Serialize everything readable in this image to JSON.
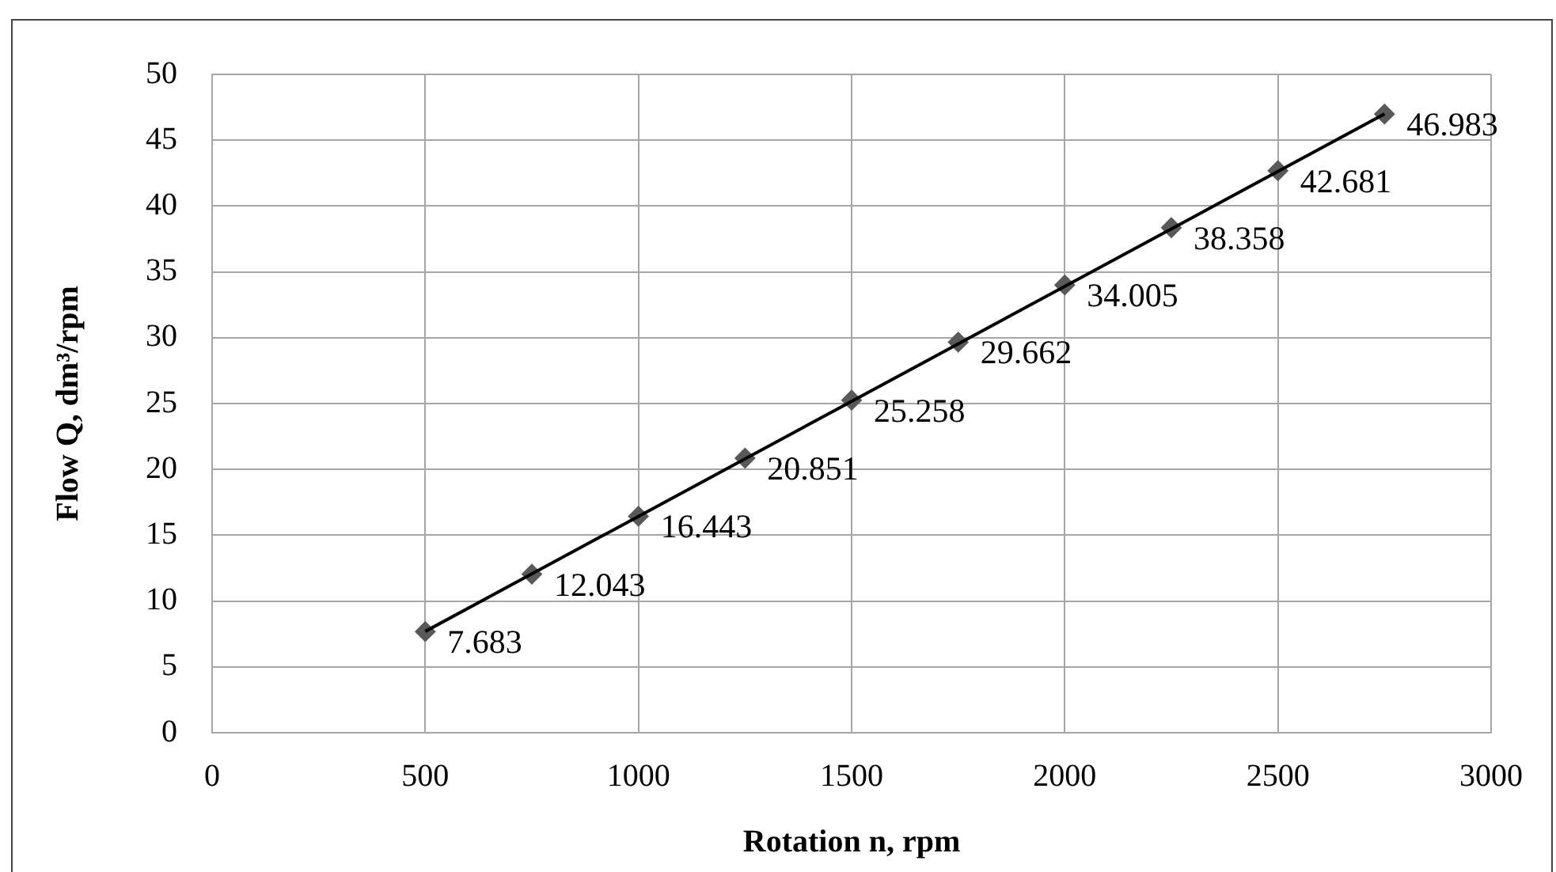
{
  "chart_data": {
    "type": "scatter",
    "xlabel": "Rotation n, rpm",
    "ylabel": "Flow Q, dm³/rpm",
    "x": [
      500,
      750,
      1000,
      1250,
      1500,
      1750,
      2000,
      2250,
      2500,
      2750
    ],
    "series": [
      {
        "color": "#595959",
        "marker": "diamond",
        "values": [
          7.683,
          12.043,
          16.443,
          20.851,
          25.258,
          29.662,
          34.005,
          38.358,
          42.681,
          46.983
        ],
        "value_labels": [
          "7.683",
          "12.043",
          "16.443",
          "20.851",
          "25.258",
          "29.662",
          "34.005",
          "38.358",
          "42.681",
          "46.983"
        ]
      },
      {
        "type": "line",
        "color": "#000000",
        "marker": "none",
        "x": [
          500,
          2750
        ],
        "values": [
          7.7,
          47.0
        ]
      }
    ],
    "grid": true,
    "legend": false,
    "xlim": [
      0,
      3000
    ],
    "xticks": [
      0,
      500,
      1000,
      1500,
      2000,
      2500,
      3000
    ],
    "ylim": [
      0,
      50
    ],
    "yticks": [
      0,
      5,
      10,
      15,
      20,
      25,
      30,
      35,
      40,
      45,
      50
    ]
  }
}
